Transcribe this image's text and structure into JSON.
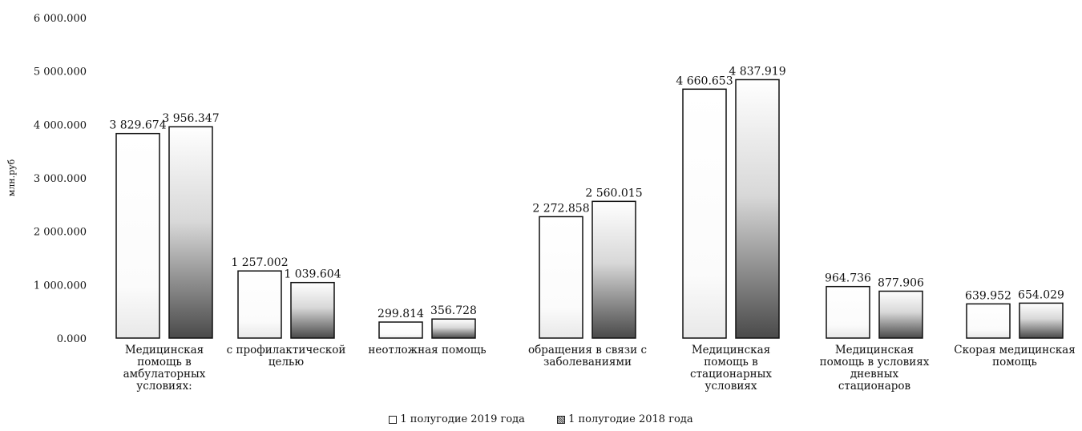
{
  "chart_data": {
    "type": "bar",
    "ylabel": "млн.руб",
    "ylim": [
      0,
      6000
    ],
    "yticks": [
      "0.000",
      "1 000.000",
      "2 000.000",
      "3 000.000",
      "4 000.000",
      "5 000.000",
      "6 000.000"
    ],
    "categories": [
      "Медицинская помощь в амбулаторных условиях:",
      "с профилактической целью",
      "неотложная помощь",
      "обращения в связи с заболеваниями",
      "Медицинская помощь в стационарных условиях",
      "Медицинская помощь в условиях дневных стационаров",
      "Скорая медицинская помощь"
    ],
    "series": [
      {
        "name": "1 полугодие 2019 года",
        "values": [
          3829.674,
          1257.002,
          299.814,
          2272.858,
          4660.653,
          964.736,
          639.952
        ],
        "labels": [
          "3 829.674",
          "1 257.002",
          "299.814",
          "2 272.858",
          "4 660.653",
          "964.736",
          "639.952"
        ],
        "color": "#ffffff"
      },
      {
        "name": "1 полугодие 2018 года",
        "values": [
          3956.347,
          1039.604,
          356.728,
          2560.015,
          4837.919,
          877.906,
          654.029
        ],
        "labels": [
          "3 956.347",
          "1 039.604",
          "356.728",
          "2 560.015",
          "4 837.919",
          "877.906",
          "654.029"
        ],
        "color": "#444444"
      }
    ],
    "legend_position": "bottom"
  }
}
